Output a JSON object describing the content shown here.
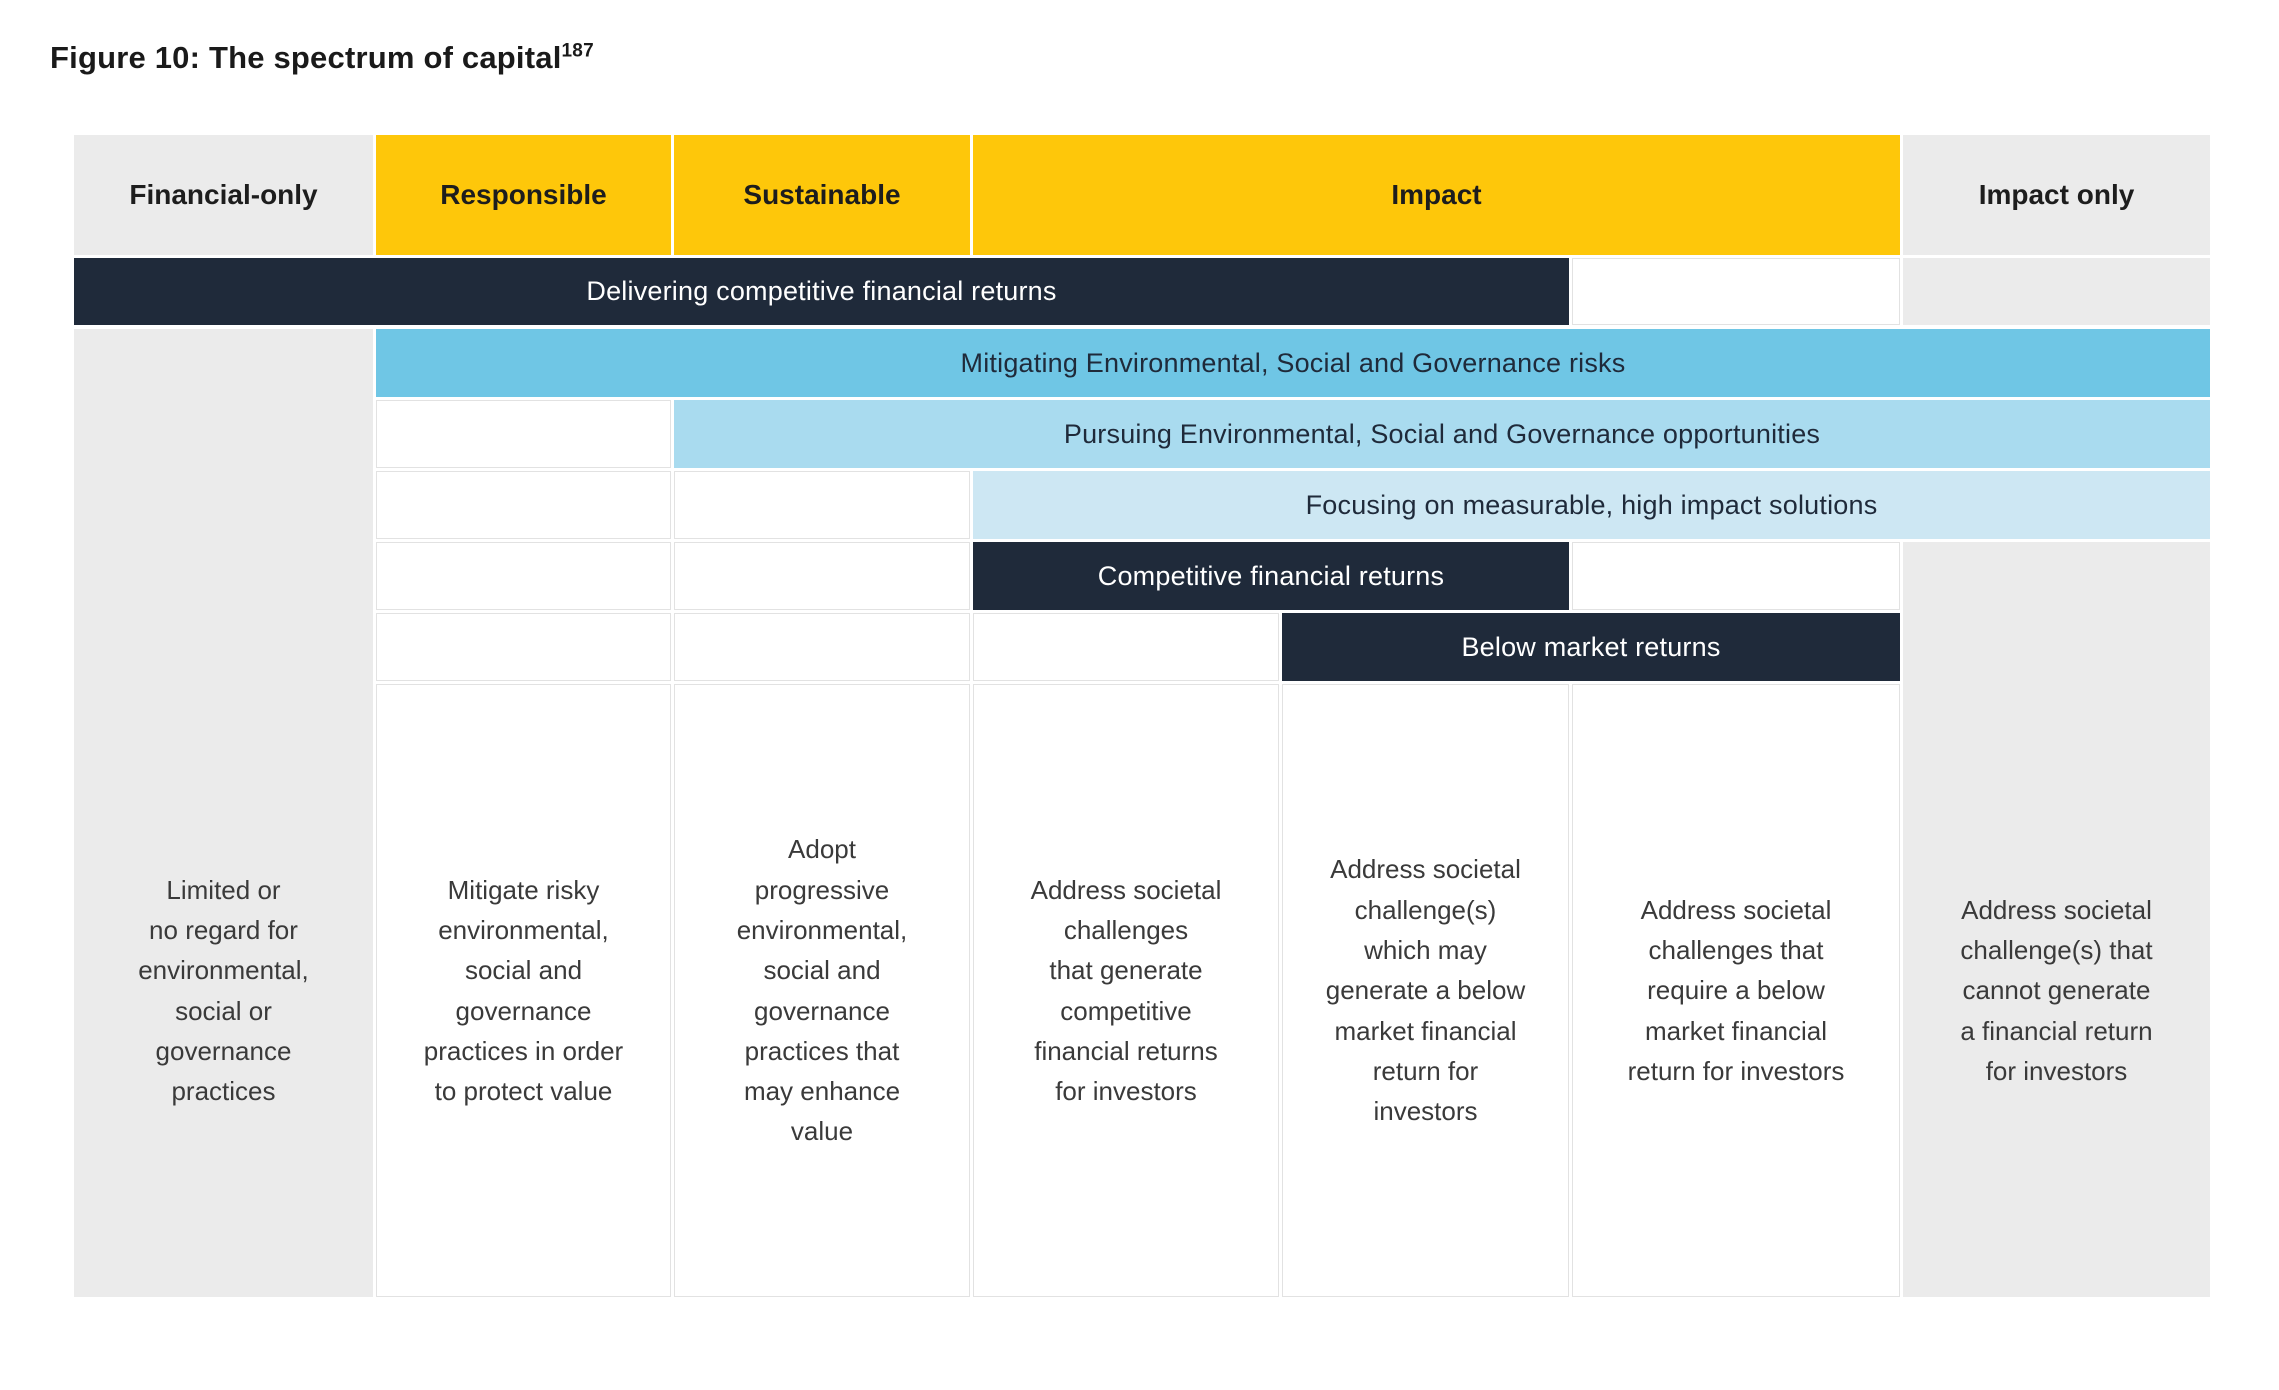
{
  "figure": {
    "title": "Figure 10: The spectrum of capital",
    "footnote_ref": "187"
  },
  "colors": {
    "yellow": "#FEC70A",
    "navy": "#1F2A3A",
    "blue_medium": "#6FC6E5",
    "blue_light": "#A9DBEF",
    "blue_lightest": "#CDE7F3",
    "gray": "#EBEBEB"
  },
  "header": {
    "financial_only": "Financial-only",
    "responsible": "Responsible",
    "sustainable": "Sustainable",
    "impact": "Impact",
    "impact_only": "Impact only"
  },
  "bars": {
    "delivering": "Delivering competitive financial returns",
    "mitigating": "Mitigating Environmental, Social and Governance risks",
    "pursuing": "Pursuing Environmental, Social and Governance opportunities",
    "focusing": "Focusing on measurable, high impact solutions",
    "competitive": "Competitive financial returns",
    "below_market": "Below market returns"
  },
  "descriptions": {
    "financial_only": "Limited or\nno regard for\nenvironmental,\nsocial or\ngovernance\npractices",
    "responsible": "Mitigate risky\nenvironmental,\nsocial and\ngovernance\npractices in order\nto protect value",
    "sustainable": "Adopt\nprogressive\nenvironmental,\nsocial and\ngovernance\npractices that\nmay enhance\nvalue",
    "impact_competitive": "Address societal\nchallenges\nthat generate\ncompetitive\nfinancial returns\nfor investors",
    "impact_below_may": "Address societal\nchallenge(s)\nwhich may\ngenerate a below\nmarket financial\nreturn for\ninvestors",
    "impact_below_require": "Address societal\nchallenges that\nrequire a below\nmarket financial\nreturn for investors",
    "impact_only": "Address societal\nchallenge(s) that\ncannot generate\na financial return\nfor investors"
  }
}
